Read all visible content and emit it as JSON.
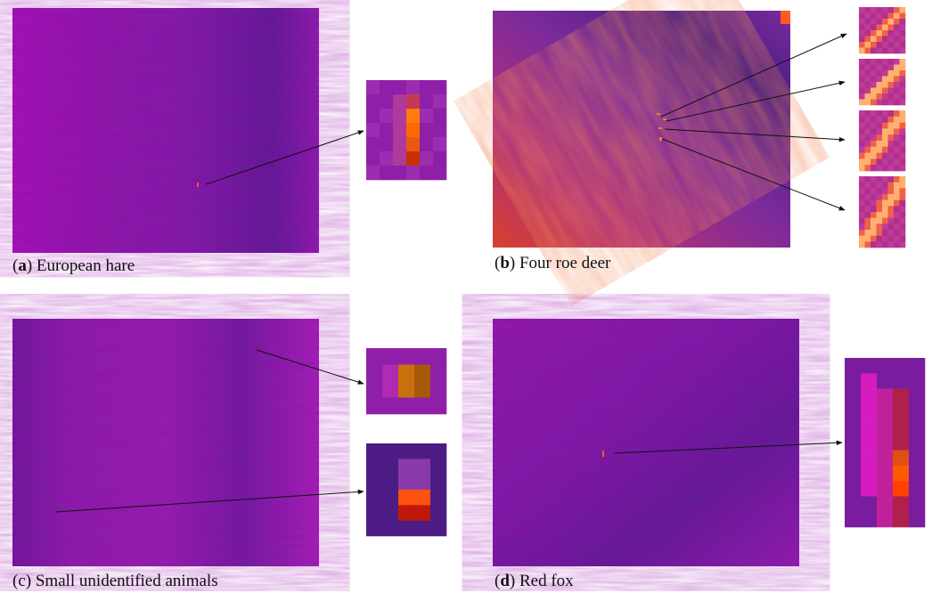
{
  "panels": [
    {
      "open": "(",
      "letter": "a",
      "close": ")",
      "text": " European hare"
    },
    {
      "open": "(",
      "letter": "b",
      "close": ")",
      "text": " Four roe deer"
    },
    {
      "open": "(",
      "letter": "c",
      "close": ")",
      "text": " Small unidentified animals"
    },
    {
      "open": "(",
      "letter": "d",
      "close": ")",
      "text": " Red fox"
    }
  ]
}
